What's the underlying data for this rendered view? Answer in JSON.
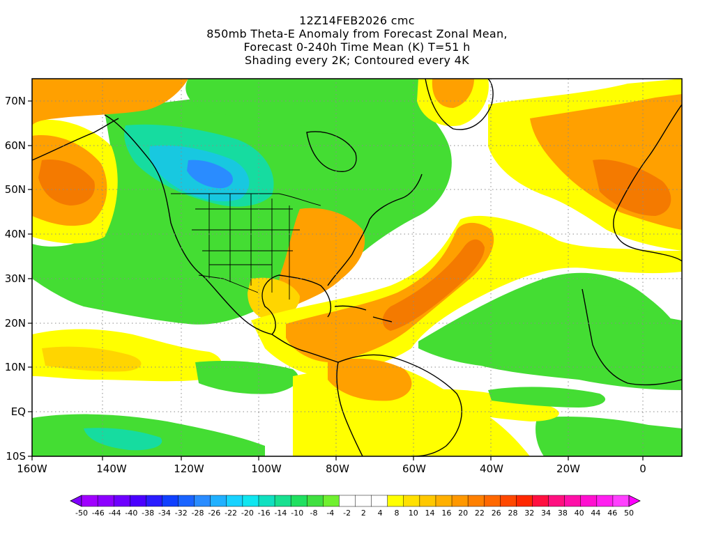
{
  "title": {
    "line1": "12Z14FEB2026 cmc",
    "line2": "850mb Theta-E Anomaly from Forecast Zonal Mean,",
    "line3": "Forecast 0-240h Time Mean (K) T=51 h",
    "line4": "Shading every 2K; Contoured every 4K"
  },
  "lat_labels": [
    "70N",
    "60N",
    "50N",
    "40N",
    "30N",
    "20N",
    "10N",
    "EQ",
    "10S"
  ],
  "lon_labels": [
    "160W",
    "140W",
    "120W",
    "100W",
    "80W",
    "60W",
    "40W",
    "20W",
    "0"
  ],
  "colorbar": {
    "labels": [
      "-50",
      "-46",
      "-44",
      "-40",
      "-38",
      "-34",
      "-32",
      "-28",
      "-26",
      "-22",
      "-20",
      "-16",
      "-14",
      "-10",
      "-8",
      "-4",
      "-2",
      "2",
      "4",
      "8",
      "10",
      "14",
      "16",
      "20",
      "22",
      "26",
      "28",
      "32",
      "34",
      "38",
      "40",
      "44",
      "46",
      "50"
    ],
    "colors": [
      "#a000ff",
      "#8c00ff",
      "#6e00ff",
      "#4a00ff",
      "#2a1cff",
      "#1040ff",
      "#1a64ff",
      "#2a8cff",
      "#20b0ff",
      "#18d2ff",
      "#10e6f0",
      "#10e0c0",
      "#18e090",
      "#20e060",
      "#40e040",
      "#70f030",
      "#ffffff",
      "#ffffff",
      "#ffffff",
      "#ffff00",
      "#ffe000",
      "#ffc800",
      "#ffb000",
      "#ff9800",
      "#ff8000",
      "#ff6800",
      "#ff4800",
      "#ff2800",
      "#ff1040",
      "#ff1080",
      "#ff10a8",
      "#ff10d0",
      "#ff20f0",
      "#ff40ff"
    ],
    "min_arrow_color": "#8000ff",
    "max_arrow_color": "#ff00ff"
  },
  "field_colors": {
    "green": "#44dd33",
    "green_light": "#6ee64a",
    "teal": "#16dca0",
    "cyan": "#18c8e0",
    "blue": "#2a8cff",
    "yellow": "#ffff00",
    "gold": "#ffd500",
    "orange": "#ffa000",
    "dark_orange": "#f47a00",
    "white": "#ffffff"
  }
}
